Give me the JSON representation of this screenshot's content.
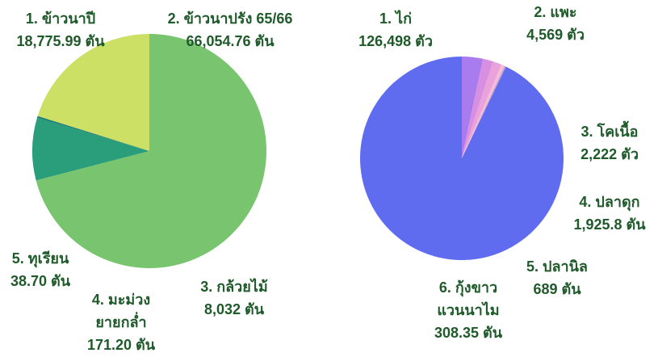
{
  "chart_data": [
    {
      "type": "pie",
      "categories": [
        "1. ข้าวนาปี",
        "2. ข้าวนาปรัง 65/66",
        "3. กล้วยไม้",
        "4. มะม่วง ยายกล่ำ",
        "5. ทุเรียน"
      ],
      "values": [
        18775.99,
        66054.76,
        8032,
        171.2,
        38.7
      ],
      "value_labels": [
        "18,775.99 ตัน",
        "66,054.76 ตัน",
        "8,032 ตัน",
        "171.20 ตัน",
        "38.70 ตัน"
      ],
      "colors": [
        "#cde066",
        "#79c46e",
        "#2a9d7a",
        "#0e7a6e",
        "#0b5a5c"
      ]
    },
    {
      "type": "pie",
      "categories": [
        "1. ไก่",
        "2. แพะ",
        "3. โคเนื้อ",
        "4. ปลาดุก",
        "5. ปลานิล",
        "6. กุ้งขาว แวนนาไม"
      ],
      "values": [
        126498,
        4569,
        2222,
        1925.8,
        689,
        308.35
      ],
      "value_labels": [
        "126,498 ตัว",
        "4,569 ตัว",
        "2,222 ตัว",
        "1,925.8 ตัน",
        "689 ตัน",
        "308.35 ตัน"
      ],
      "colors": [
        "#5f6cf0",
        "#a87cee",
        "#d88fe2",
        "#eaa2da",
        "#f6bcd8",
        "#c9a2c9"
      ]
    }
  ]
}
